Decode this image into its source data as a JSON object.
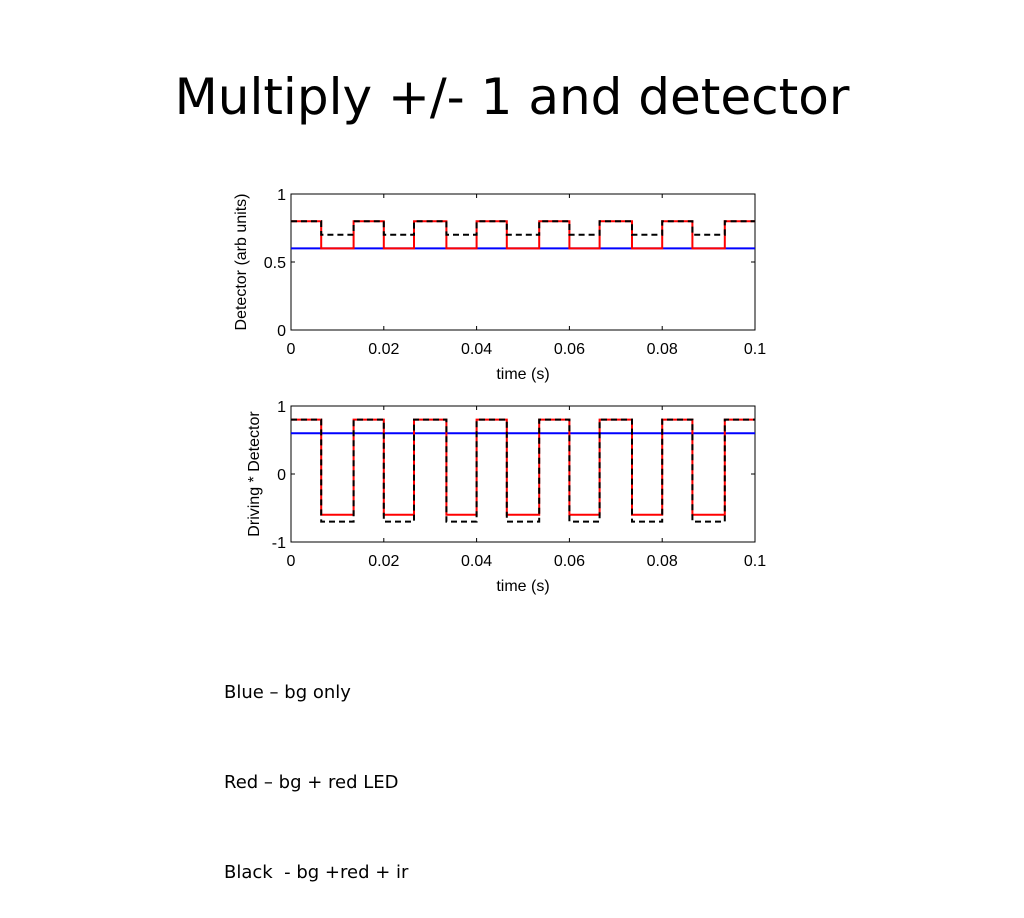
{
  "slide": {
    "title": "Multiply +/- 1 and detector",
    "notes": [
      "Blue – bg only",
      "Red – bg + red LED",
      "Black  - bg +red + ir"
    ]
  },
  "chart_data": [
    {
      "type": "line",
      "xlabel": "time (s)",
      "ylabel": "Detector (arb units)",
      "xlim": [
        0,
        0.1
      ],
      "ylim": [
        0,
        1
      ],
      "xticks": [
        "0",
        "0.02",
        "0.04",
        "0.06",
        "0.08",
        "0.1"
      ],
      "yticks": [
        "0",
        "0.5",
        "1"
      ],
      "grid": false,
      "series": [
        {
          "color": "#0000ff",
          "style": "solid",
          "x": [
            0,
            0.1
          ],
          "y": [
            0.6,
            0.6
          ]
        },
        {
          "color": "#ff0000",
          "style": "solid",
          "x": [
            0,
            0.0065,
            0.0065,
            0.0135,
            0.0135,
            0.02,
            0.02,
            0.0265,
            0.0265,
            0.0335,
            0.0335,
            0.04,
            0.04,
            0.0465,
            0.0465,
            0.0535,
            0.0535,
            0.06,
            0.06,
            0.0665,
            0.0665,
            0.0735,
            0.0735,
            0.08,
            0.08,
            0.0865,
            0.0865,
            0.0935,
            0.0935,
            0.1
          ],
          "y": [
            0.8,
            0.8,
            0.6,
            0.6,
            0.8,
            0.8,
            0.6,
            0.6,
            0.8,
            0.8,
            0.6,
            0.6,
            0.8,
            0.8,
            0.6,
            0.6,
            0.8,
            0.8,
            0.6,
            0.6,
            0.8,
            0.8,
            0.6,
            0.6,
            0.8,
            0.8,
            0.6,
            0.6,
            0.8,
            0.8
          ]
        },
        {
          "color": "#000000",
          "style": "dashed",
          "x": [
            0,
            0.0065,
            0.0065,
            0.0135,
            0.0135,
            0.02,
            0.02,
            0.0265,
            0.0265,
            0.0335,
            0.0335,
            0.04,
            0.04,
            0.0465,
            0.0465,
            0.0535,
            0.0535,
            0.06,
            0.06,
            0.0665,
            0.0665,
            0.0735,
            0.0735,
            0.08,
            0.08,
            0.0865,
            0.0865,
            0.0935,
            0.0935,
            0.1
          ],
          "y": [
            0.8,
            0.8,
            0.7,
            0.7,
            0.8,
            0.8,
            0.7,
            0.7,
            0.8,
            0.8,
            0.7,
            0.7,
            0.8,
            0.8,
            0.7,
            0.7,
            0.8,
            0.8,
            0.7,
            0.7,
            0.8,
            0.8,
            0.7,
            0.7,
            0.8,
            0.8,
            0.7,
            0.7,
            0.8,
            0.8
          ]
        }
      ]
    },
    {
      "type": "line",
      "xlabel": "time (s)",
      "ylabel": "Driving * Detector",
      "xlim": [
        0,
        0.1
      ],
      "ylim": [
        -1,
        1
      ],
      "xticks": [
        "0",
        "0.02",
        "0.04",
        "0.06",
        "0.08",
        "0.1"
      ],
      "yticks": [
        "-1",
        "0",
        "1"
      ],
      "grid": false,
      "series": [
        {
          "color": "#0000ff",
          "style": "solid",
          "x": [
            0,
            0.1
          ],
          "y": [
            0.6,
            0.6
          ]
        },
        {
          "color": "#ff0000",
          "style": "solid",
          "x": [
            0,
            0.0065,
            0.0065,
            0.0135,
            0.0135,
            0.02,
            0.02,
            0.0265,
            0.0265,
            0.0335,
            0.0335,
            0.04,
            0.04,
            0.0465,
            0.0465,
            0.0535,
            0.0535,
            0.06,
            0.06,
            0.0665,
            0.0665,
            0.0735,
            0.0735,
            0.08,
            0.08,
            0.0865,
            0.0865,
            0.0935,
            0.0935,
            0.1
          ],
          "y": [
            0.8,
            0.8,
            -0.6,
            -0.6,
            0.8,
            0.8,
            -0.6,
            -0.6,
            0.8,
            0.8,
            -0.6,
            -0.6,
            0.8,
            0.8,
            -0.6,
            -0.6,
            0.8,
            0.8,
            -0.6,
            -0.6,
            0.8,
            0.8,
            -0.6,
            -0.6,
            0.8,
            0.8,
            -0.6,
            -0.6,
            0.8,
            0.8
          ]
        },
        {
          "color": "#000000",
          "style": "dashed",
          "x": [
            0,
            0.0065,
            0.0065,
            0.0135,
            0.0135,
            0.02,
            0.02,
            0.0265,
            0.0265,
            0.0335,
            0.0335,
            0.04,
            0.04,
            0.0465,
            0.0465,
            0.0535,
            0.0535,
            0.06,
            0.06,
            0.0665,
            0.0665,
            0.0735,
            0.0735,
            0.08,
            0.08,
            0.0865,
            0.0865,
            0.0935,
            0.0935,
            0.1
          ],
          "y": [
            0.8,
            0.8,
            -0.7,
            -0.7,
            0.8,
            0.8,
            -0.7,
            -0.7,
            0.8,
            0.8,
            -0.7,
            -0.7,
            0.8,
            0.8,
            -0.7,
            -0.7,
            0.8,
            0.8,
            -0.7,
            -0.7,
            0.8,
            0.8,
            -0.7,
            -0.7,
            0.8,
            0.8,
            -0.7,
            -0.7,
            0.8,
            0.8
          ]
        }
      ]
    }
  ]
}
